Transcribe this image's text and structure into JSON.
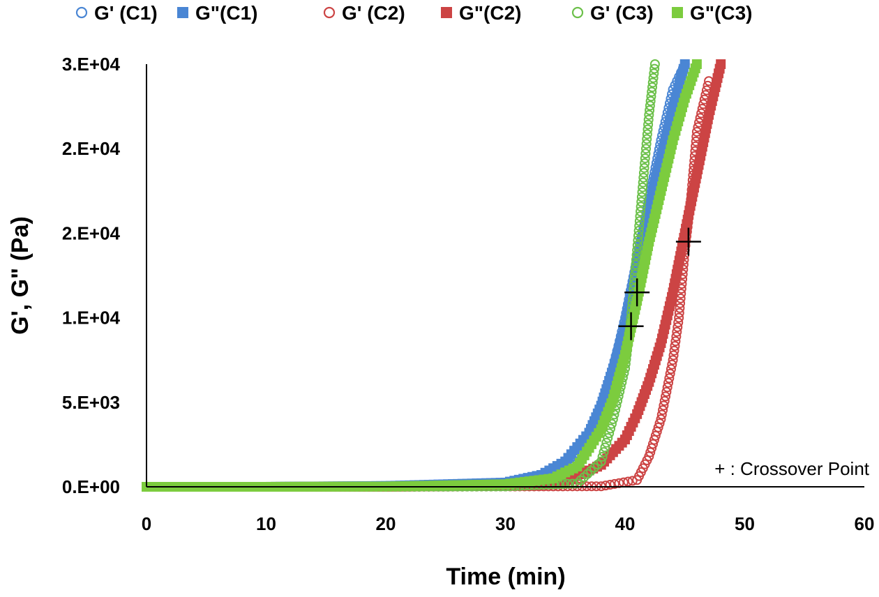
{
  "chart_data": {
    "type": "scatter",
    "xlabel": "Time (min)",
    "ylabel": "G', G\" (Pa)",
    "xlim": [
      0,
      60
    ],
    "ylim": [
      0,
      25000
    ],
    "x_ticks": [
      0,
      10,
      20,
      30,
      40,
      50,
      60
    ],
    "x_tick_labels": [
      "0",
      "10",
      "20",
      "30",
      "40",
      "50",
      "60"
    ],
    "y_ticks": [
      0,
      5000,
      10000,
      15000,
      20000,
      25000
    ],
    "y_tick_labels": [
      "0.E+00",
      "5.E+03",
      "1.E+04",
      "2.E+04",
      "2.E+04",
      "3.E+04"
    ],
    "grid": false,
    "legend_position": "top",
    "annotation": "+ : Crossover Point",
    "series": [
      {
        "name": "G' (C1)",
        "marker": "open-circle",
        "color": "#4a86d4",
        "x": [
          0,
          10,
          20,
          30,
          34,
          36,
          38,
          39,
          40,
          41,
          42,
          43,
          44,
          45
        ],
        "y": [
          0,
          0,
          20,
          150,
          800,
          2000,
          4500,
          7000,
          10000,
          13500,
          17000,
          20500,
          23500,
          25000
        ]
      },
      {
        "name": "G\"(C1)",
        "marker": "filled-square",
        "color": "#4a86d4",
        "x": [
          0,
          10,
          20,
          30,
          33,
          35,
          37,
          38,
          39,
          40,
          41,
          42,
          43,
          44,
          45
        ],
        "y": [
          0,
          0,
          50,
          250,
          700,
          1500,
          3200,
          4800,
          7000,
          9500,
          13000,
          16500,
          19500,
          22500,
          25000
        ]
      },
      {
        "name": "G' (C2)",
        "marker": "open-circle",
        "color": "#cc4444",
        "x": [
          0,
          10,
          20,
          30,
          38,
          41,
          42,
          43,
          44,
          44.5,
          45,
          45.5,
          46,
          47
        ],
        "y": [
          0,
          0,
          0,
          20,
          30,
          400,
          1800,
          4000,
          7500,
          10000,
          14000,
          17000,
          21000,
          24000
        ]
      },
      {
        "name": "G\"(C2)",
        "marker": "filled-square",
        "color": "#cc4444",
        "x": [
          0,
          10,
          20,
          30,
          35,
          38,
          40,
          41,
          42,
          43,
          44,
          45,
          46,
          47,
          48
        ],
        "y": [
          0,
          0,
          5,
          60,
          300,
          1300,
          2800,
          4300,
          6200,
          8500,
          11500,
          15000,
          18500,
          22000,
          25000
        ]
      },
      {
        "name": "G' (C3)",
        "marker": "open-circle",
        "color": "#6cc04a",
        "x": [
          0,
          10,
          20,
          30,
          36,
          38,
          39,
          40,
          40.5,
          41,
          41.5,
          42,
          42.5
        ],
        "y": [
          0,
          0,
          0,
          20,
          200,
          1500,
          4000,
          7000,
          10000,
          14000,
          18000,
          22000,
          25000
        ]
      },
      {
        "name": "G\"(C3)",
        "marker": "filled-square",
        "color": "#7ccc3e",
        "x": [
          0,
          10,
          20,
          30,
          34,
          36,
          38,
          39,
          40,
          41,
          42,
          43,
          44,
          45,
          46
        ],
        "y": [
          0,
          0,
          20,
          150,
          500,
          1200,
          3400,
          5200,
          7800,
          11000,
          14500,
          17500,
          20500,
          23000,
          25000
        ]
      }
    ],
    "crossover_points": [
      {
        "x": 40.5,
        "y": 9500
      },
      {
        "x": 41,
        "y": 11500
      },
      {
        "x": 45.3,
        "y": 14500
      }
    ]
  }
}
